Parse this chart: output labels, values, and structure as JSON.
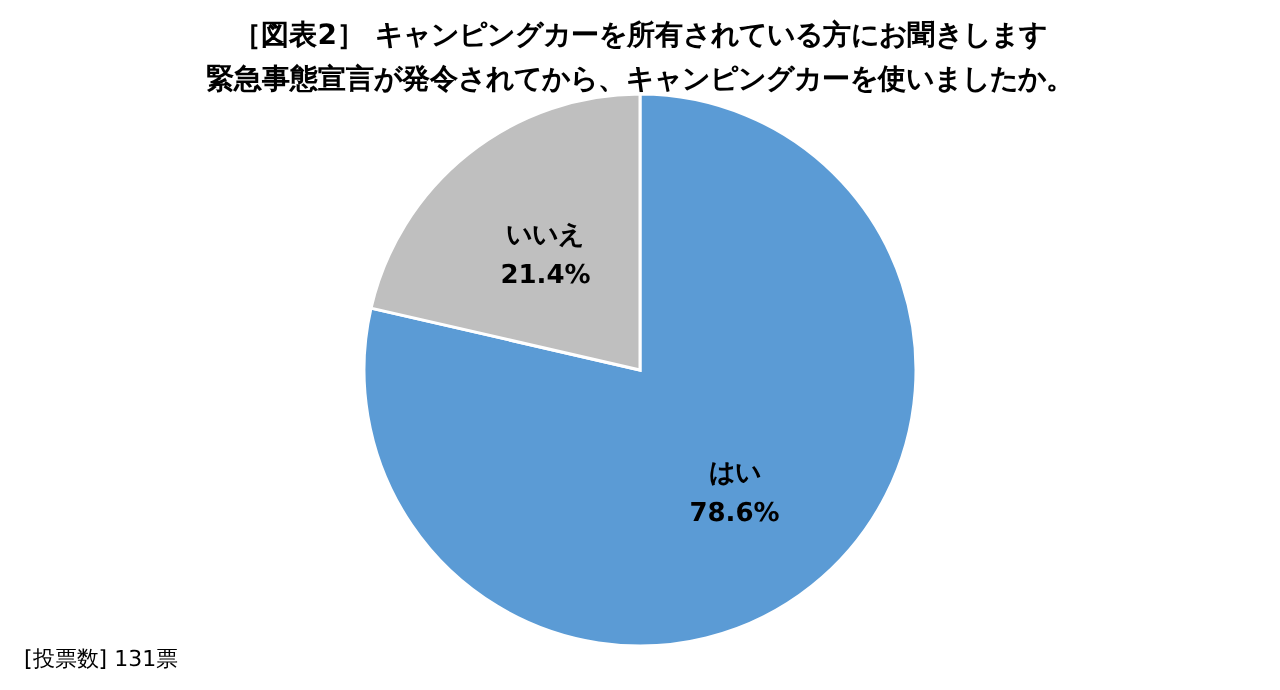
{
  "chart_data": {
    "type": "pie",
    "title": "［図表2］ キャンピングカーを所有されている方にお聞きします",
    "subtitle": "緊急事態宣言が発令されてから、キャンピングカーを使いましたか。",
    "categories": [
      "はい",
      "いいえ"
    ],
    "values": [
      78.6,
      21.4
    ],
    "value_labels": [
      "78.6%",
      "21.4%"
    ],
    "colors": [
      "#5b9bd5",
      "#bfbfbf"
    ],
    "legend": false,
    "annotations": [
      "[投票数] 131票"
    ]
  }
}
